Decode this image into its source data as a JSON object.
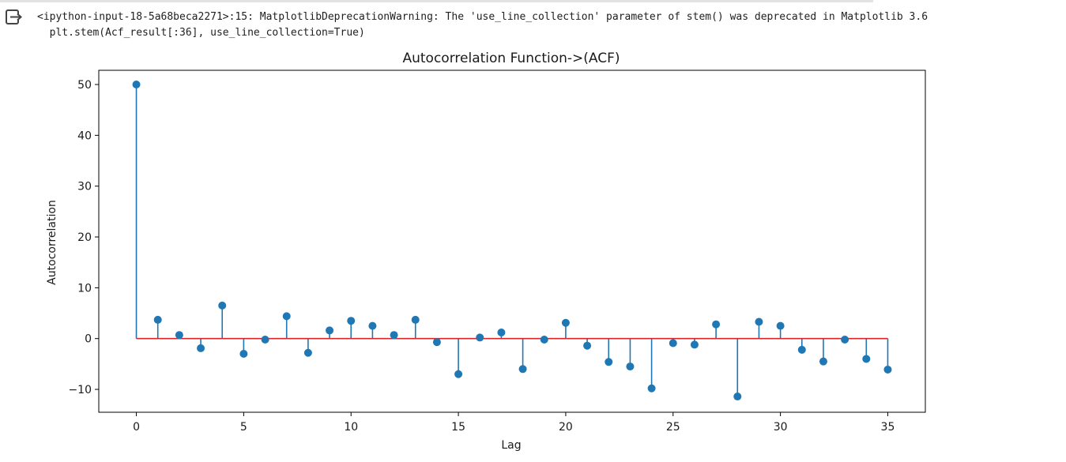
{
  "output": {
    "icon": "output-redirect-icon",
    "warning_line_1": "<ipython-input-18-5a68beca2271>:15: MatplotlibDeprecationWarning: The 'use_line_collection' parameter of stem() was deprecated in Matplotlib 3.6",
    "warning_line_2": "  plt.stem(Acf_result[:36], use_line_collection=True)"
  },
  "colors": {
    "stem": "#1f77b4",
    "baseline": "#d62728",
    "axes": "#000000",
    "text": "#1a1a1a"
  },
  "chart_data": {
    "type": "stem",
    "title": "Autocorrelation Function->(ACF)",
    "xlabel": "Lag",
    "ylabel": "Autocorrelation",
    "xlim": [
      -1.75,
      36.75
    ],
    "ylim": [
      -14.5,
      52.8
    ],
    "xticks": [
      0,
      5,
      10,
      15,
      20,
      25,
      30,
      35
    ],
    "yticks": [
      -10,
      0,
      10,
      20,
      30,
      40,
      50
    ],
    "ytick_labels": [
      "−10",
      "0",
      "10",
      "20",
      "30",
      "40",
      "50"
    ],
    "baseline": 0,
    "grid": false,
    "x": [
      0,
      1,
      2,
      3,
      4,
      5,
      6,
      7,
      8,
      9,
      10,
      11,
      12,
      13,
      14,
      15,
      16,
      17,
      18,
      19,
      20,
      21,
      22,
      23,
      24,
      25,
      26,
      27,
      28,
      29,
      30,
      31,
      32,
      33,
      34,
      35
    ],
    "values": [
      50,
      3.7,
      0.7,
      -1.9,
      6.5,
      -3.0,
      -0.2,
      4.4,
      -2.8,
      1.6,
      3.5,
      2.5,
      0.7,
      3.7,
      -0.7,
      -7.0,
      0.2,
      1.2,
      -6.0,
      -0.2,
      3.1,
      -1.4,
      -4.6,
      -5.5,
      -9.8,
      -0.9,
      -1.2,
      2.8,
      -11.4,
      3.3,
      2.5,
      -2.2,
      -4.5,
      -0.2,
      -4.0,
      -6.1
    ]
  }
}
